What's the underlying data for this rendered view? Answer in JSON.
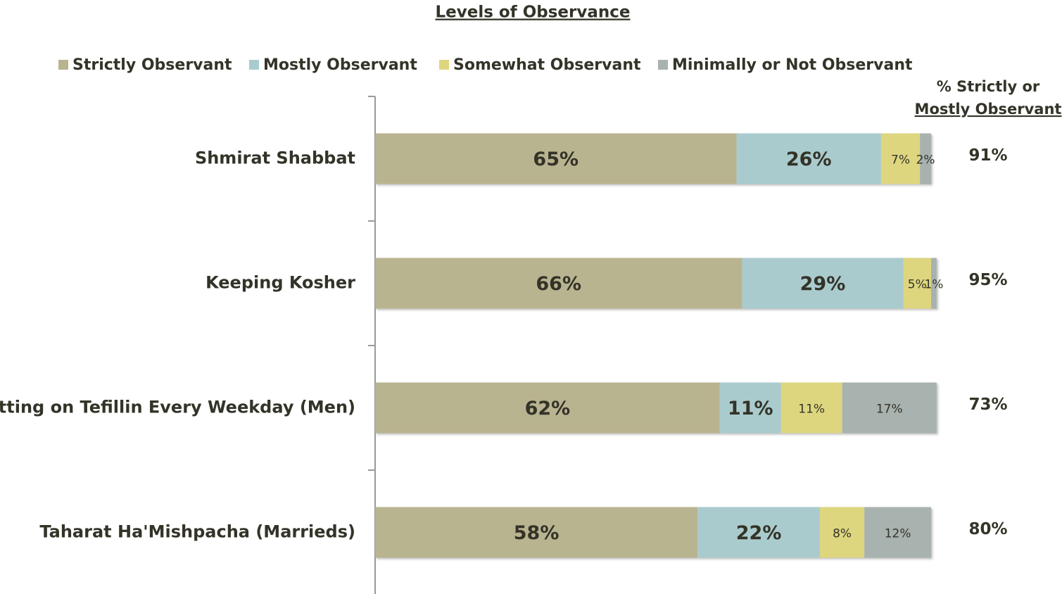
{
  "chart_data": {
    "type": "stacked_bar_horizontal",
    "title": "Levels of Observance",
    "categories": [
      "Shmirat Shabbat",
      "Keeping Kosher",
      "Putting on Tefillin Every Weekday (Men)",
      "Taharat Ha'Mishpacha (Marrieds)"
    ],
    "series": [
      {
        "name": "Strictly Observant",
        "color": "#b9b490",
        "values": [
          65,
          66,
          62,
          58
        ],
        "value_labels": [
          "65%",
          "66%",
          "62%",
          "58%"
        ]
      },
      {
        "name": "Mostly Observant",
        "color": "#aacbcd",
        "values": [
          26,
          29,
          11,
          22
        ],
        "value_labels": [
          "26%",
          "29%",
          "11%",
          "22%"
        ]
      },
      {
        "name": "Somewhat Observant",
        "color": "#ded67f",
        "values": [
          7,
          5,
          11,
          8
        ],
        "value_labels": [
          "7%",
          "5%",
          "11%",
          "8%"
        ]
      },
      {
        "name": "Minimally or Not Observant",
        "color": "#a8b2af",
        "values": [
          2,
          1,
          17,
          12
        ],
        "value_labels": [
          "2%",
          "1%",
          "17%",
          "12%"
        ]
      }
    ],
    "summary_title": [
      "% Strictly or",
      "Mostly Observant"
    ],
    "summary_labels": [
      "91%",
      "95%",
      "73%",
      "80%"
    ]
  }
}
